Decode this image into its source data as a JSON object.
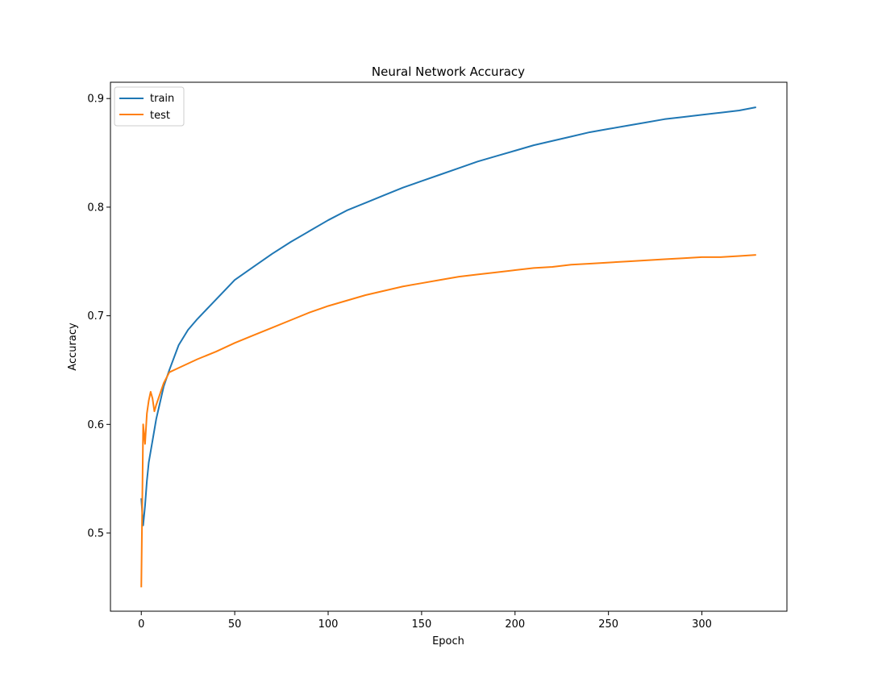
{
  "chart_data": {
    "type": "line",
    "title": "Neural Network Accuracy",
    "xlabel": "Epoch",
    "ylabel": "Accuracy",
    "xlim": [
      -16.5,
      345.5
    ],
    "ylim": [
      0.428,
      0.915
    ],
    "xticks": [
      0,
      50,
      100,
      150,
      200,
      250,
      300
    ],
    "yticks": [
      0.5,
      0.6,
      0.7,
      0.8,
      0.9
    ],
    "xtick_labels": [
      "0",
      "50",
      "100",
      "150",
      "200",
      "250",
      "300"
    ],
    "ytick_labels": [
      "0.5",
      "0.6",
      "0.7",
      "0.8",
      "0.9"
    ],
    "grid": false,
    "legend_position": "top-left",
    "series": [
      {
        "name": "train",
        "color": "#1f77b4",
        "x": [
          0,
          1,
          2,
          3,
          4,
          5,
          6,
          7,
          8,
          10,
          12,
          15,
          20,
          25,
          30,
          40,
          50,
          60,
          70,
          80,
          90,
          100,
          110,
          120,
          130,
          140,
          150,
          160,
          170,
          180,
          190,
          200,
          210,
          220,
          230,
          240,
          250,
          260,
          270,
          280,
          290,
          300,
          310,
          320,
          329
        ],
        "y": [
          0.532,
          0.507,
          0.525,
          0.548,
          0.565,
          0.575,
          0.585,
          0.595,
          0.605,
          0.62,
          0.635,
          0.65,
          0.673,
          0.687,
          0.697,
          0.715,
          0.733,
          0.745,
          0.757,
          0.768,
          0.778,
          0.788,
          0.797,
          0.804,
          0.811,
          0.818,
          0.824,
          0.83,
          0.836,
          0.842,
          0.847,
          0.852,
          0.857,
          0.861,
          0.865,
          0.869,
          0.872,
          0.875,
          0.878,
          0.881,
          0.883,
          0.885,
          0.887,
          0.889,
          0.892
        ]
      },
      {
        "name": "test",
        "color": "#ff7f0e",
        "x": [
          0,
          1,
          2,
          3,
          4,
          5,
          6,
          7,
          8,
          10,
          12,
          15,
          20,
          25,
          30,
          40,
          50,
          60,
          70,
          80,
          90,
          100,
          110,
          120,
          130,
          140,
          150,
          160,
          170,
          180,
          190,
          200,
          210,
          220,
          230,
          240,
          250,
          260,
          270,
          280,
          290,
          300,
          310,
          320,
          329
        ],
        "y": [
          0.45,
          0.6,
          0.582,
          0.61,
          0.622,
          0.63,
          0.624,
          0.612,
          0.618,
          0.628,
          0.638,
          0.648,
          0.652,
          0.656,
          0.66,
          0.667,
          0.675,
          0.682,
          0.689,
          0.696,
          0.703,
          0.709,
          0.714,
          0.719,
          0.723,
          0.727,
          0.73,
          0.733,
          0.736,
          0.738,
          0.74,
          0.742,
          0.744,
          0.745,
          0.747,
          0.748,
          0.749,
          0.75,
          0.751,
          0.752,
          0.753,
          0.754,
          0.754,
          0.755,
          0.756
        ]
      }
    ]
  }
}
